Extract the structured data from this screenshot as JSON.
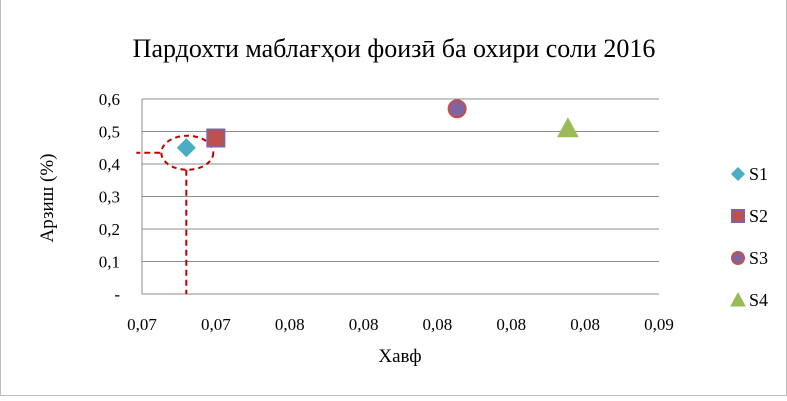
{
  "chart_data": {
    "type": "scatter",
    "title": "Пардохти маблағҳои фоизӣ ба охири соли 2016",
    "xlabel": "Хавф",
    "ylabel": "Арзиш (%)",
    "xlim": [
      0.0695,
      0.0905
    ],
    "ylim": [
      0,
      0.6
    ],
    "x_tick_values": [
      0.0695,
      0.0725,
      0.0755,
      0.0785,
      0.0815,
      0.0845,
      0.0875,
      0.0905
    ],
    "x_tick_labels": [
      "0,07",
      "0,07",
      "0,08",
      "0,08",
      "0,08",
      "0,08",
      "0,08",
      "0,09"
    ],
    "y_tick_values": [
      0,
      0.1,
      0.2,
      0.3,
      0.4,
      0.5,
      0.6
    ],
    "y_tick_labels": [
      "-",
      "0,1",
      "0,2",
      "0,3",
      "0,4",
      "0,5",
      "0,6"
    ],
    "grid": "horizontal",
    "legend_position": "right",
    "series": [
      {
        "name": "S1",
        "marker": "diamond",
        "color": "#4bacc6",
        "stroke": "#4bacc6",
        "x": 0.0713,
        "y": 0.45
      },
      {
        "name": "S2",
        "marker": "square",
        "color": "#c0504d",
        "stroke": "#8064a2",
        "x": 0.0725,
        "y": 0.48
      },
      {
        "name": "S3",
        "marker": "circle",
        "color": "#8064a2",
        "stroke": "#c0504d",
        "x": 0.0823,
        "y": 0.57
      },
      {
        "name": "S4",
        "marker": "triangle",
        "color": "#9bbb59",
        "stroke": "#9bbb59",
        "x": 0.0868,
        "y": 0.51
      }
    ],
    "annotation": {
      "type": "dashed-ellipse-with-guides",
      "color": "#c00000",
      "target_series": "S1"
    }
  }
}
